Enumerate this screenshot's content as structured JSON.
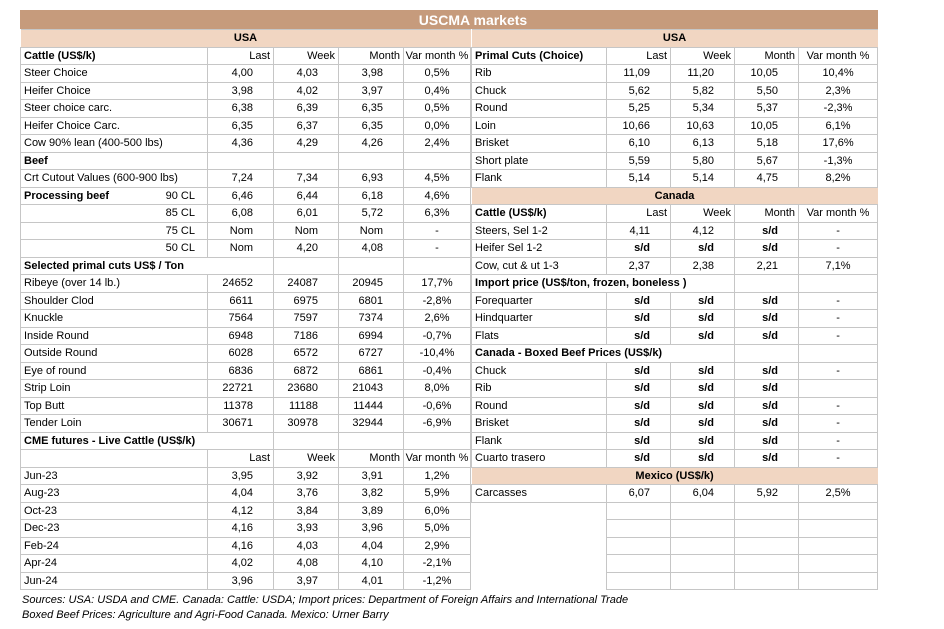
{
  "title": "USCMA markets",
  "columns": [
    "Last",
    "Week",
    "Month",
    "Var month %"
  ],
  "colors": {
    "band_brown": "#C69B7C",
    "band_peach": "#F1D6C2",
    "grid_border": "#C6C6C6",
    "divider": "#000000",
    "title_text": "#FFFFFF"
  },
  "left": {
    "rows": [
      {
        "type": "band",
        "label": "USA"
      },
      {
        "type": "header",
        "label": "Cattle (US$/k)"
      },
      {
        "type": "data",
        "label": "Steer Choice",
        "v": [
          "4,00",
          "4,03",
          "3,98",
          "0,5%"
        ]
      },
      {
        "type": "data",
        "label": "Heifer Choice",
        "v": [
          "3,98",
          "4,02",
          "3,97",
          "0,4%"
        ]
      },
      {
        "type": "data",
        "label": "Steer choice carc.",
        "v": [
          "6,38",
          "6,39",
          "6,35",
          "0,5%"
        ]
      },
      {
        "type": "data",
        "label": "Heifer Choice Carc.",
        "v": [
          "6,35",
          "6,37",
          "6,35",
          "0,0%"
        ]
      },
      {
        "type": "data",
        "label": "Cow 90% lean (400-500 lbs)",
        "v": [
          "4,36",
          "4,29",
          "4,26",
          "2,4%"
        ]
      },
      {
        "type": "section",
        "label": "Beef",
        "span": 1
      },
      {
        "type": "data",
        "label": "Crt Cutout Values (600-900 lbs)",
        "v": [
          "7,24",
          "7,34",
          "6,93",
          "4,5%"
        ]
      },
      {
        "type": "data",
        "label": "Processing beef",
        "bold": true,
        "sub": "90 CL",
        "v": [
          "6,46",
          "6,44",
          "6,18",
          "4,6%"
        ]
      },
      {
        "type": "data",
        "label": "",
        "sub": "85 CL",
        "v": [
          "6,08",
          "6,01",
          "5,72",
          "6,3%"
        ]
      },
      {
        "type": "data",
        "label": "",
        "sub": "75 CL",
        "v": [
          "Nom",
          "Nom",
          "Nom",
          "-"
        ]
      },
      {
        "type": "data",
        "label": "",
        "sub": "50 CL",
        "v": [
          "Nom",
          "4,20",
          "4,08",
          "-"
        ]
      },
      {
        "type": "section",
        "label": "Selected primal cuts US$ / Ton",
        "span": 2
      },
      {
        "type": "data",
        "label": "Ribeye (over 14 lb.)",
        "v": [
          "24652",
          "24087",
          "20945",
          "17,7%"
        ]
      },
      {
        "type": "data",
        "label": "Shoulder Clod",
        "v": [
          "6611",
          "6975",
          "6801",
          "-2,8%"
        ]
      },
      {
        "type": "data",
        "label": "Knuckle",
        "v": [
          "7564",
          "7597",
          "7374",
          "2,6%"
        ]
      },
      {
        "type": "data",
        "label": "Inside Round",
        "v": [
          "6948",
          "7186",
          "6994",
          "-0,7%"
        ]
      },
      {
        "type": "data",
        "label": "Outside Round",
        "v": [
          "6028",
          "6572",
          "6727",
          "-10,4%"
        ]
      },
      {
        "type": "data",
        "label": "Eye of round",
        "v": [
          "6836",
          "6872",
          "6861",
          "-0,4%"
        ]
      },
      {
        "type": "data",
        "label": "Strip Loin",
        "v": [
          "22721",
          "23680",
          "21043",
          "8,0%"
        ]
      },
      {
        "type": "data",
        "label": "Top Butt",
        "v": [
          "11378",
          "11188",
          "11444",
          "-0,6%"
        ]
      },
      {
        "type": "data",
        "label": "Tender Loin",
        "v": [
          "30671",
          "30978",
          "32944",
          "-6,9%"
        ]
      },
      {
        "type": "section",
        "label": "CME futures - Live Cattle (US$/k)",
        "span": 2
      },
      {
        "type": "header",
        "label": ""
      },
      {
        "type": "data",
        "label": "Jun-23",
        "v": [
          "3,95",
          "3,92",
          "3,91",
          "1,2%"
        ]
      },
      {
        "type": "data",
        "label": "Aug-23",
        "v": [
          "4,04",
          "3,76",
          "3,82",
          "5,9%"
        ]
      },
      {
        "type": "data",
        "label": "Oct-23",
        "v": [
          "4,12",
          "3,84",
          "3,89",
          "6,0%"
        ]
      },
      {
        "type": "data",
        "label": "Dec-23",
        "v": [
          "4,16",
          "3,93",
          "3,96",
          "5,0%"
        ]
      },
      {
        "type": "data",
        "label": "Feb-24",
        "v": [
          "4,16",
          "4,03",
          "4,04",
          "2,9%"
        ]
      },
      {
        "type": "data",
        "label": "Apr-24",
        "v": [
          "4,02",
          "4,08",
          "4,10",
          "-2,1%"
        ]
      },
      {
        "type": "data",
        "label": "Jun-24",
        "v": [
          "3,96",
          "3,97",
          "4,01",
          "-1,2%"
        ]
      }
    ]
  },
  "right": {
    "rows": [
      {
        "type": "band",
        "label": "USA"
      },
      {
        "type": "header",
        "label": "Primal Cuts (Choice)"
      },
      {
        "type": "data",
        "label": "Rib",
        "v": [
          "11,09",
          "11,20",
          "10,05",
          "10,4%"
        ]
      },
      {
        "type": "data",
        "label": "Chuck",
        "v": [
          "5,62",
          "5,82",
          "5,50",
          "2,3%"
        ]
      },
      {
        "type": "data",
        "label": "Round",
        "v": [
          "5,25",
          "5,34",
          "5,37",
          "-2,3%"
        ]
      },
      {
        "type": "data",
        "label": "Loin",
        "v": [
          "10,66",
          "10,63",
          "10,05",
          "6,1%"
        ]
      },
      {
        "type": "data",
        "label": "Brisket",
        "v": [
          "6,10",
          "6,13",
          "5,18",
          "17,6%"
        ]
      },
      {
        "type": "data",
        "label": "Short plate",
        "v": [
          "5,59",
          "5,80",
          "5,67",
          "-1,3%"
        ]
      },
      {
        "type": "data",
        "label": "Flank",
        "v": [
          "5,14",
          "5,14",
          "4,75",
          "8,2%"
        ]
      },
      {
        "type": "band",
        "label": "Canada"
      },
      {
        "type": "header",
        "label": "Cattle (US$/k)"
      },
      {
        "type": "data",
        "label": "Steers, Sel 1-2",
        "v": [
          "4,11",
          "4,12",
          "s/d",
          "-"
        ]
      },
      {
        "type": "data",
        "label": "Heifer Sel 1-2",
        "v": [
          "s/d",
          "s/d",
          "s/d",
          "-"
        ]
      },
      {
        "type": "data",
        "label": "Cow, cut & ut 1-3",
        "v": [
          "2,37",
          "2,38",
          "2,21",
          "7,1%"
        ]
      },
      {
        "type": "section",
        "label": "Import price (US$/ton, frozen, boneless )",
        "span": 3
      },
      {
        "type": "data",
        "label": "Forequarter",
        "v": [
          "s/d",
          "s/d",
          "s/d",
          "-"
        ]
      },
      {
        "type": "data",
        "label": "Hindquarter",
        "v": [
          "s/d",
          "s/d",
          "s/d",
          "-"
        ]
      },
      {
        "type": "data",
        "label": "Flats",
        "v": [
          "s/d",
          "s/d",
          "s/d",
          "-"
        ]
      },
      {
        "type": "section",
        "label": "Canada - Boxed Beef Prices (US$/k)",
        "span": 3
      },
      {
        "type": "data",
        "label": "Chuck",
        "v": [
          "s/d",
          "s/d",
          "s/d",
          "-"
        ]
      },
      {
        "type": "data",
        "label": "Rib",
        "v": [
          "s/d",
          "s/d",
          "s/d",
          ""
        ]
      },
      {
        "type": "data",
        "label": "Round",
        "v": [
          "s/d",
          "s/d",
          "s/d",
          "-"
        ]
      },
      {
        "type": "data",
        "label": "Brisket",
        "v": [
          "s/d",
          "s/d",
          "s/d",
          "-"
        ]
      },
      {
        "type": "data",
        "label": "Flank",
        "v": [
          "s/d",
          "s/d",
          "s/d",
          "-"
        ]
      },
      {
        "type": "data",
        "label": "Cuarto trasero",
        "v": [
          "s/d",
          "s/d",
          "s/d",
          "-"
        ]
      },
      {
        "type": "band",
        "label": "Mexico (US$/k)"
      },
      {
        "type": "data",
        "label": "Carcasses",
        "v": [
          "6,07",
          "6,04",
          "5,92",
          "2,5%"
        ]
      },
      {
        "type": "empty"
      },
      {
        "type": "empty"
      },
      {
        "type": "empty"
      },
      {
        "type": "empty"
      },
      {
        "type": "empty"
      }
    ]
  },
  "footer": {
    "line1": "Sources: USA: USDA and CME. Canada: Cattle: USDA; Import prices: Department of Foreign Affairs and International Trade",
    "line2": "Boxed Beef Prices: Agriculture and Agri-Food Canada. Mexico: Urner Barry"
  }
}
